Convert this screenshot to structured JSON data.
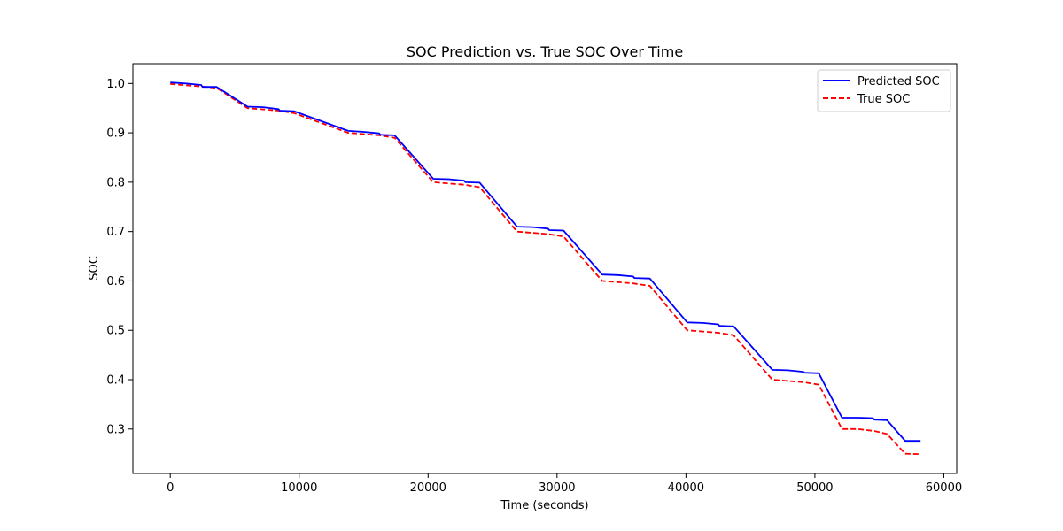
{
  "chart_data": {
    "type": "line",
    "title": "SOC Prediction vs. True SOC Over Time",
    "xlabel": "Time (seconds)",
    "ylabel": "SOC",
    "xlim": [
      -2900,
      61000
    ],
    "ylim": [
      0.21,
      1.04
    ],
    "xticks": [
      0,
      10000,
      20000,
      30000,
      40000,
      50000,
      60000
    ],
    "xtick_labels": [
      "0",
      "10000",
      "20000",
      "30000",
      "40000",
      "50000",
      "60000"
    ],
    "yticks": [
      0.3,
      0.4,
      0.5,
      0.6,
      0.7,
      0.8,
      0.9,
      1.0
    ],
    "ytick_labels": [
      "0.3",
      "0.4",
      "0.5",
      "0.6",
      "0.7",
      "0.8",
      "0.9",
      "1.0"
    ],
    "grid": false,
    "legend_position": "top-right",
    "series": [
      {
        "name": "Predicted SOC",
        "color": "#0000ff",
        "style": "solid",
        "points": [
          [
            0,
            1.002
          ],
          [
            1200,
            1.0
          ],
          [
            2400,
            0.997
          ],
          [
            2500,
            0.993
          ],
          [
            3600,
            0.993
          ],
          [
            6000,
            0.953
          ],
          [
            7200,
            0.952
          ],
          [
            8400,
            0.948
          ],
          [
            8500,
            0.945
          ],
          [
            9600,
            0.944
          ],
          [
            13800,
            0.904
          ],
          [
            15000,
            0.902
          ],
          [
            16200,
            0.899
          ],
          [
            16300,
            0.896
          ],
          [
            17400,
            0.895
          ],
          [
            20400,
            0.807
          ],
          [
            21600,
            0.806
          ],
          [
            22800,
            0.803
          ],
          [
            22900,
            0.8
          ],
          [
            24000,
            0.799
          ],
          [
            26900,
            0.71
          ],
          [
            28100,
            0.709
          ],
          [
            29300,
            0.706
          ],
          [
            29400,
            0.703
          ],
          [
            30500,
            0.702
          ],
          [
            33500,
            0.613
          ],
          [
            34700,
            0.612
          ],
          [
            35900,
            0.609
          ],
          [
            36000,
            0.606
          ],
          [
            37200,
            0.605
          ],
          [
            40100,
            0.516
          ],
          [
            41300,
            0.515
          ],
          [
            42500,
            0.512
          ],
          [
            42600,
            0.509
          ],
          [
            43700,
            0.508
          ],
          [
            46700,
            0.42
          ],
          [
            47900,
            0.419
          ],
          [
            49100,
            0.416
          ],
          [
            49200,
            0.414
          ],
          [
            50300,
            0.413
          ],
          [
            50300,
            0.413
          ],
          [
            52100,
            0.323
          ],
          [
            53300,
            0.323
          ],
          [
            54500,
            0.322
          ],
          [
            54600,
            0.319
          ],
          [
            55600,
            0.318
          ],
          [
            57000,
            0.276
          ],
          [
            58200,
            0.276
          ]
        ]
      },
      {
        "name": "True SOC",
        "color": "#ff0000",
        "style": "dashed",
        "points": [
          [
            0,
            0.999
          ],
          [
            2400,
            0.994
          ],
          [
            3600,
            0.991
          ],
          [
            6000,
            0.95
          ],
          [
            8400,
            0.945
          ],
          [
            9600,
            0.94
          ],
          [
            13800,
            0.9
          ],
          [
            16200,
            0.895
          ],
          [
            17400,
            0.89
          ],
          [
            20400,
            0.8
          ],
          [
            22800,
            0.795
          ],
          [
            24000,
            0.79
          ],
          [
            26900,
            0.7
          ],
          [
            29300,
            0.695
          ],
          [
            30500,
            0.69
          ],
          [
            33500,
            0.6
          ],
          [
            35900,
            0.595
          ],
          [
            37200,
            0.59
          ],
          [
            40100,
            0.5
          ],
          [
            42500,
            0.495
          ],
          [
            43700,
            0.49
          ],
          [
            46700,
            0.4
          ],
          [
            49100,
            0.395
          ],
          [
            50300,
            0.39
          ],
          [
            52100,
            0.3
          ],
          [
            53300,
            0.3
          ],
          [
            54600,
            0.296
          ],
          [
            55600,
            0.29
          ],
          [
            57000,
            0.25
          ],
          [
            58200,
            0.249
          ]
        ]
      }
    ]
  }
}
